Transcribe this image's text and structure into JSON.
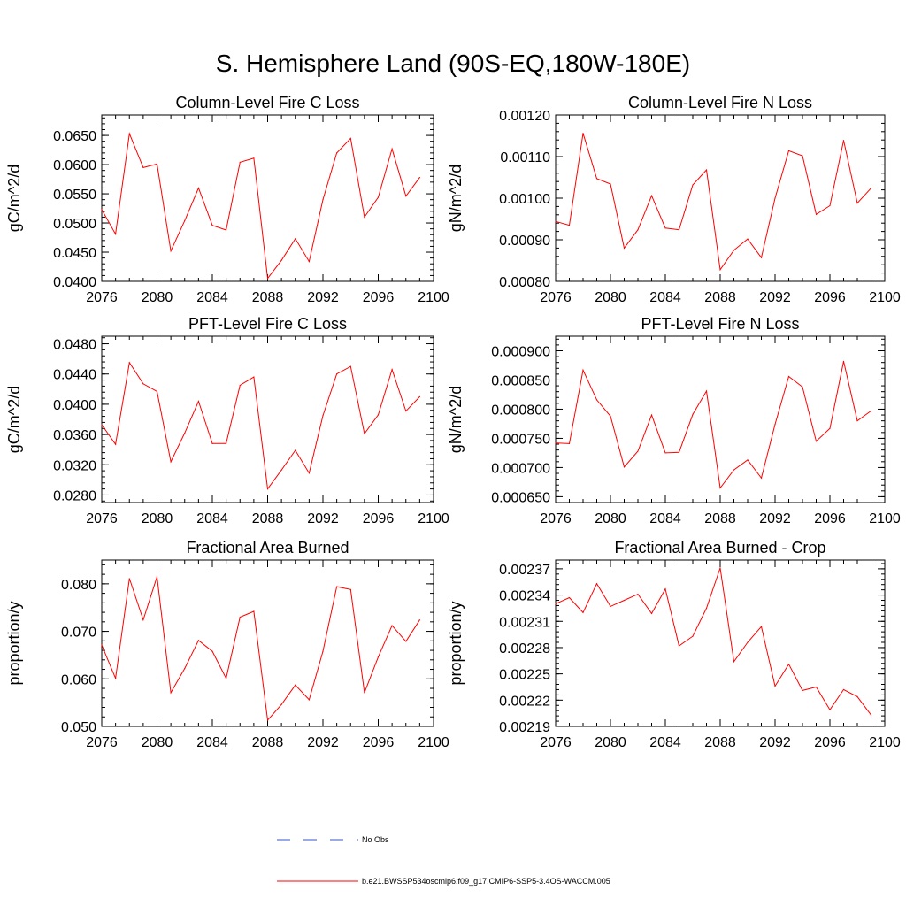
{
  "title": "S. Hemisphere Land (90S-EQ,180W-180E)",
  "chart_data": [
    {
      "type": "line",
      "title": "Column-Level Fire C Loss",
      "xlabel": "",
      "ylabel": "gC/m^2/d",
      "xlim": [
        2076,
        2100
      ],
      "ylim": [
        0.04,
        0.0685
      ],
      "xticks": [
        2076,
        2080,
        2084,
        2088,
        2092,
        2096,
        2100
      ],
      "xtick_labels": [
        "2076",
        "2080",
        "2084",
        "2088",
        "2092",
        "2096",
        "2100"
      ],
      "yticks": [
        0.04,
        0.045,
        0.05,
        0.055,
        0.06,
        0.065
      ],
      "ytick_labels": [
        "0.0400",
        "0.0450",
        "0.0500",
        "0.0550",
        "0.0600",
        "0.0650"
      ],
      "x": [
        2076,
        2077,
        2078,
        2079,
        2080,
        2081,
        2082,
        2083,
        2084,
        2085,
        2086,
        2087,
        2088,
        2089,
        2090,
        2091,
        2092,
        2093,
        2094,
        2095,
        2096,
        2097,
        2098,
        2099
      ],
      "series": [
        {
          "name": "b.e21.BWSSP534oscmip6.f09_g17.CMIP6-SSP5-3.4OS-WACCM.005",
          "color": "#ff0000",
          "values": [
            0.0523,
            0.0481,
            0.0653,
            0.0595,
            0.0601,
            0.0452,
            0.0504,
            0.056,
            0.0496,
            0.0488,
            0.0604,
            0.0611,
            0.0405,
            0.0436,
            0.0473,
            0.0434,
            0.054,
            0.062,
            0.0645,
            0.051,
            0.0544,
            0.0627,
            0.0546,
            0.0578
          ]
        }
      ]
    },
    {
      "type": "line",
      "title": "Column-Level Fire N Loss",
      "xlabel": "",
      "ylabel": "gN/m^2/d",
      "xlim": [
        2076,
        2100
      ],
      "ylim": [
        0.0008,
        0.0012
      ],
      "xticks": [
        2076,
        2080,
        2084,
        2088,
        2092,
        2096,
        2100
      ],
      "xtick_labels": [
        "2076",
        "2080",
        "2084",
        "2088",
        "2092",
        "2096",
        "2100"
      ],
      "yticks": [
        0.0008,
        0.0009,
        0.001,
        0.0011,
        0.0012
      ],
      "ytick_labels": [
        "0.00080",
        "0.00090",
        "0.00100",
        "0.00110",
        "0.00120"
      ],
      "x": [
        2076,
        2077,
        2078,
        2079,
        2080,
        2081,
        2082,
        2083,
        2084,
        2085,
        2086,
        2087,
        2088,
        2089,
        2090,
        2091,
        2092,
        2093,
        2094,
        2095,
        2096,
        2097,
        2098,
        2099
      ],
      "series": [
        {
          "name": "b.e21.BWSSP534oscmip6.f09_g17.CMIP6-SSP5-3.4OS-WACCM.005",
          "color": "#ff0000",
          "values": [
            0.000944,
            0.000935,
            0.001156,
            0.001047,
            0.001034,
            0.00088,
            0.000924,
            0.001006,
            0.000928,
            0.000924,
            0.001032,
            0.001068,
            0.000828,
            0.000875,
            0.000902,
            0.000857,
            0.001,
            0.001114,
            0.001102,
            0.000961,
            0.000982,
            0.001139,
            0.000988,
            0.001024
          ]
        }
      ]
    },
    {
      "type": "line",
      "title": "PFT-Level Fire C Loss",
      "xlabel": "",
      "ylabel": "gC/m^2/d",
      "xlim": [
        2076,
        2100
      ],
      "ylim": [
        0.027,
        0.049
      ],
      "xticks": [
        2076,
        2080,
        2084,
        2088,
        2092,
        2096,
        2100
      ],
      "xtick_labels": [
        "2076",
        "2080",
        "2084",
        "2088",
        "2092",
        "2096",
        "2100"
      ],
      "yticks": [
        0.028,
        0.032,
        0.036,
        0.04,
        0.044,
        0.048
      ],
      "ytick_labels": [
        "0.0280",
        "0.0320",
        "0.0360",
        "0.0400",
        "0.0440",
        "0.0480"
      ],
      "x": [
        2076,
        2077,
        2078,
        2079,
        2080,
        2081,
        2082,
        2083,
        2084,
        2085,
        2086,
        2087,
        2088,
        2089,
        2090,
        2091,
        2092,
        2093,
        2094,
        2095,
        2096,
        2097,
        2098,
        2099
      ],
      "series": [
        {
          "name": "b.e21.BWSSP534oscmip6.f09_g17.CMIP6-SSP5-3.4OS-WACCM.005",
          "color": "#ff0000",
          "values": [
            0.0373,
            0.0347,
            0.0455,
            0.0427,
            0.0417,
            0.0324,
            0.0362,
            0.0404,
            0.0348,
            0.0348,
            0.0425,
            0.0436,
            0.0288,
            0.0313,
            0.0339,
            0.0309,
            0.0385,
            0.044,
            0.045,
            0.0361,
            0.0386,
            0.0446,
            0.0391,
            0.041
          ]
        }
      ]
    },
    {
      "type": "line",
      "title": "PFT-Level Fire N Loss",
      "xlabel": "",
      "ylabel": "gN/m^2/d",
      "xlim": [
        2076,
        2100
      ],
      "ylim": [
        0.00064,
        0.000925
      ],
      "xticks": [
        2076,
        2080,
        2084,
        2088,
        2092,
        2096,
        2100
      ],
      "xtick_labels": [
        "2076",
        "2080",
        "2084",
        "2088",
        "2092",
        "2096",
        "2100"
      ],
      "yticks": [
        0.00065,
        0.0007,
        0.00075,
        0.0008,
        0.00085,
        0.0009
      ],
      "ytick_labels": [
        "0.000650",
        "0.000700",
        "0.000750",
        "0.000800",
        "0.000850",
        "0.000900"
      ],
      "x": [
        2076,
        2077,
        2078,
        2079,
        2080,
        2081,
        2082,
        2083,
        2084,
        2085,
        2086,
        2087,
        2088,
        2089,
        2090,
        2091,
        2092,
        2093,
        2094,
        2095,
        2096,
        2097,
        2098,
        2099
      ],
      "series": [
        {
          "name": "b.e21.BWSSP534oscmip6.f09_g17.CMIP6-SSP5-3.4OS-WACCM.005",
          "color": "#ff0000",
          "values": [
            0.000742,
            0.000741,
            0.000867,
            0.000816,
            0.000788,
            0.000701,
            0.000728,
            0.00079,
            0.000725,
            0.000726,
            0.000791,
            0.000831,
            0.000665,
            0.000696,
            0.000713,
            0.000682,
            0.000774,
            0.000856,
            0.000838,
            0.000745,
            0.000767,
            0.000882,
            0.00078,
            0.000797
          ]
        }
      ]
    },
    {
      "type": "line",
      "title": "Fractional Area Burned",
      "xlabel": "",
      "ylabel": "proportion/y",
      "xlim": [
        2076,
        2100
      ],
      "ylim": [
        0.05,
        0.085
      ],
      "xticks": [
        2076,
        2080,
        2084,
        2088,
        2092,
        2096,
        2100
      ],
      "xtick_labels": [
        "2076",
        "2080",
        "2084",
        "2088",
        "2092",
        "2096",
        "2100"
      ],
      "yticks": [
        0.05,
        0.06,
        0.07,
        0.08
      ],
      "ytick_labels": [
        "0.050",
        "0.060",
        "0.070",
        "0.080"
      ],
      "x": [
        2076,
        2077,
        2078,
        2079,
        2080,
        2081,
        2082,
        2083,
        2084,
        2085,
        2086,
        2087,
        2088,
        2089,
        2090,
        2091,
        2092,
        2093,
        2094,
        2095,
        2096,
        2097,
        2098,
        2099
      ],
      "series": [
        {
          "name": "b.e21.BWSSP534oscmip6.f09_g17.CMIP6-SSP5-3.4OS-WACCM.005",
          "color": "#ff0000",
          "values": [
            0.0671,
            0.0601,
            0.0811,
            0.0724,
            0.0815,
            0.0571,
            0.0622,
            0.0681,
            0.0658,
            0.0601,
            0.073,
            0.0742,
            0.0513,
            0.0546,
            0.0587,
            0.0556,
            0.0658,
            0.0794,
            0.0788,
            0.0571,
            0.0646,
            0.0712,
            0.0679,
            0.0724
          ]
        }
      ]
    },
    {
      "type": "line",
      "title": "Fractional Area Burned - Crop",
      "xlabel": "",
      "ylabel": "proportion/y",
      "xlim": [
        2076,
        2100
      ],
      "ylim": [
        0.00219,
        0.00238
      ],
      "xticks": [
        2076,
        2080,
        2084,
        2088,
        2092,
        2096,
        2100
      ],
      "xtick_labels": [
        "2076",
        "2080",
        "2084",
        "2088",
        "2092",
        "2096",
        "2100"
      ],
      "yticks": [
        0.00219,
        0.00222,
        0.00225,
        0.00228,
        0.00231,
        0.00234,
        0.00237
      ],
      "ytick_labels": [
        "0.00219",
        "0.00222",
        "0.00225",
        "0.00228",
        "0.00231",
        "0.00234",
        "0.00237"
      ],
      "x": [
        2076,
        2077,
        2078,
        2079,
        2080,
        2081,
        2082,
        2083,
        2084,
        2085,
        2086,
        2087,
        2088,
        2089,
        2090,
        2091,
        2092,
        2093,
        2094,
        2095,
        2096,
        2097,
        2098,
        2099
      ],
      "series": [
        {
          "name": "b.e21.BWSSP534oscmip6.f09_g17.CMIP6-SSP5-3.4OS-WACCM.005",
          "color": "#ff0000",
          "values": [
            0.00233,
            0.002337,
            0.00232,
            0.002353,
            0.002327,
            0.002334,
            0.002341,
            0.002319,
            0.002347,
            0.002282,
            0.002293,
            0.002325,
            0.002371,
            0.002264,
            0.002286,
            0.002304,
            0.002236,
            0.002261,
            0.002231,
            0.002235,
            0.002209,
            0.002232,
            0.002224,
            0.002203
          ]
        }
      ]
    }
  ],
  "legend": {
    "items": [
      {
        "label": "No Obs",
        "color": "#3355cc",
        "style": "dashed"
      },
      {
        "label": "b.e21.BWSSP534oscmip6.f09_g17.CMIP6-SSP5-3.4OS-WACCM.005",
        "color": "#ff0000",
        "style": "solid"
      }
    ]
  }
}
